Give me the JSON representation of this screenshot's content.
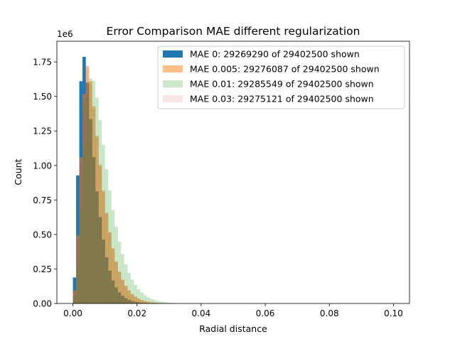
{
  "chart_data": {
    "type": "histogram",
    "title": "Error Comparison MAE different regularization",
    "xlabel": "Radial distance",
    "ylabel": "Count",
    "y_offset_label": "1e6",
    "xlim": [
      -0.005,
      0.105
    ],
    "ylim": [
      0,
      1900000
    ],
    "x_ticks": [
      0.0,
      0.02,
      0.04,
      0.06,
      0.08,
      0.1
    ],
    "x_tick_labels": [
      "0.00",
      "0.02",
      "0.04",
      "0.06",
      "0.08",
      "0.10"
    ],
    "y_ticks": [
      0,
      250000,
      500000,
      750000,
      1000000,
      1250000,
      1500000,
      1750000
    ],
    "y_tick_labels": [
      "0.00",
      "0.25",
      "0.50",
      "0.75",
      "1.00",
      "1.25",
      "1.50",
      "1.75"
    ],
    "grid": false,
    "legend_position": "top-right",
    "bin_range": [
      0.0,
      0.1
    ],
    "series": [
      {
        "name": "MAE 0: 29269290 of 29402500 shown",
        "color": "#1f77b4",
        "opacity": 1.0,
        "peak_x": 0.0037,
        "peak_y": 1810000,
        "shape": [
          0.0,
          0.11,
          0.32,
          0.55,
          0.78,
          0.93,
          1.0,
          0.98,
          0.92,
          0.85,
          0.77,
          0.69,
          0.61,
          0.53,
          0.46,
          0.4,
          0.35,
          0.3,
          0.255,
          0.215,
          0.18,
          0.15,
          0.125,
          0.104,
          0.086,
          0.071,
          0.059,
          0.049,
          0.04,
          0.033,
          0.027,
          0.022,
          0.018,
          0.015,
          0.012,
          0.01,
          0.0082,
          0.0068,
          0.0056,
          0.0046,
          0.0038,
          0.0031,
          0.0026,
          0.0021,
          0.0017,
          0.0014,
          0.0012,
          0.001,
          0.0008,
          0.0007,
          0.0006,
          0.0005,
          0.0004
        ]
      },
      {
        "name": "MAE 0.005: 29276087 of 29402500 shown",
        "color": "#ff7f0e",
        "opacity": 0.5,
        "peak_x": 0.0045,
        "peak_y": 1720000,
        "shape": [
          0.0,
          0.07,
          0.22,
          0.42,
          0.64,
          0.83,
          0.95,
          1.0,
          0.97,
          0.91,
          0.84,
          0.76,
          0.68,
          0.6,
          0.53,
          0.46,
          0.4,
          0.345,
          0.295,
          0.25,
          0.21,
          0.177,
          0.148,
          0.123,
          0.102,
          0.084,
          0.07,
          0.057,
          0.047,
          0.038,
          0.031,
          0.025,
          0.02,
          0.016,
          0.013,
          0.0105,
          0.0085,
          0.0068,
          0.0055,
          0.0044,
          0.0035,
          0.0028,
          0.0022,
          0.0018,
          0.0014,
          0.0011,
          0.0009,
          0.0007,
          0.0006,
          0.0005,
          0.0004
        ]
      },
      {
        "name": "MAE 0.01: 29285549 of 29402500 shown",
        "color": "#2ca02c",
        "opacity": 0.25,
        "peak_x": 0.0052,
        "peak_y": 1650000,
        "shape": [
          0.0,
          0.05,
          0.16,
          0.34,
          0.55,
          0.75,
          0.9,
          0.98,
          1.0,
          0.97,
          0.91,
          0.84,
          0.76,
          0.68,
          0.6,
          0.53,
          0.46,
          0.4,
          0.345,
          0.295,
          0.25,
          0.211,
          0.178,
          0.149,
          0.124,
          0.103,
          0.085,
          0.07,
          0.057,
          0.047,
          0.038,
          0.031,
          0.025,
          0.02,
          0.016,
          0.013,
          0.0105,
          0.0085,
          0.0068,
          0.0055,
          0.0044,
          0.0035,
          0.0028,
          0.0022,
          0.0018,
          0.0014,
          0.0011,
          0.0009,
          0.0007,
          0.0006,
          0.0005
        ]
      },
      {
        "name": "MAE 0.03: 29275121 of 29402500 shown",
        "color": "#d62728",
        "opacity": 0.12,
        "peak_x": 0.0045,
        "peak_y": 1700000,
        "shape": [
          0.0,
          0.07,
          0.21,
          0.41,
          0.63,
          0.82,
          0.94,
          1.0,
          0.97,
          0.91,
          0.84,
          0.76,
          0.68,
          0.6,
          0.53,
          0.46,
          0.4,
          0.345,
          0.295,
          0.25,
          0.21,
          0.177,
          0.148,
          0.123,
          0.102,
          0.084,
          0.07,
          0.057,
          0.047,
          0.038,
          0.031,
          0.025,
          0.02,
          0.016,
          0.013,
          0.0105,
          0.0085,
          0.0068,
          0.0055,
          0.0044,
          0.0035,
          0.0028,
          0.0022,
          0.0018,
          0.0014,
          0.0011,
          0.0009,
          0.0007,
          0.0006,
          0.0005,
          0.0004
        ]
      }
    ]
  }
}
